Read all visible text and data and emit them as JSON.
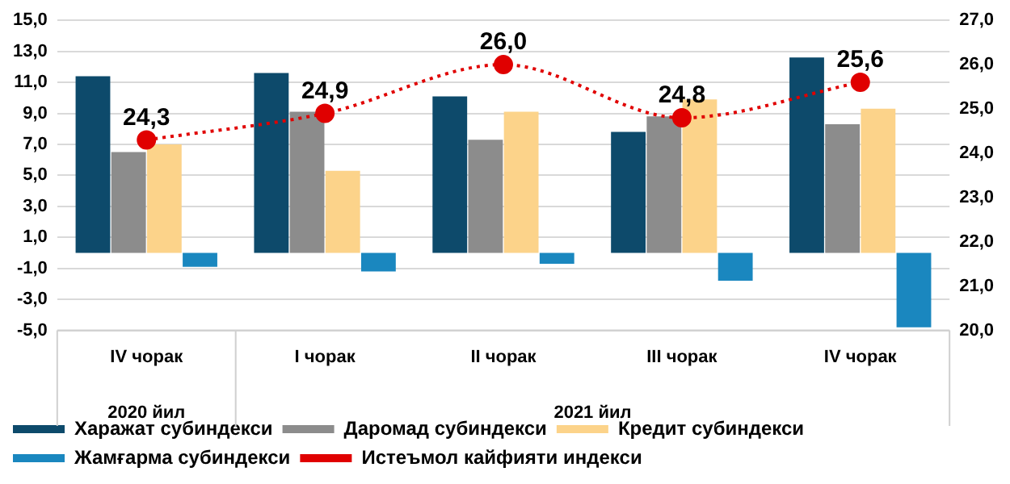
{
  "chart_data": {
    "type": "bar",
    "categories": [
      "IV чорак",
      "I чорак",
      "II чорак",
      "III чорак",
      "IV чорак"
    ],
    "annotations": [
      "2020 йил",
      "2021 йил"
    ],
    "series": [
      {
        "name": "Харажат субиндекси",
        "color": "#0d4a6b",
        "values": [
          11.4,
          11.6,
          10.1,
          7.8,
          12.6
        ]
      },
      {
        "name": "Даромад субиндекси",
        "color": "#8c8c8c",
        "values": [
          6.5,
          9.1,
          7.3,
          8.8,
          8.3
        ]
      },
      {
        "name": "Кредит субиндекси",
        "color": "#fcd38a",
        "values": [
          7.0,
          5.3,
          9.1,
          9.9,
          9.3
        ]
      },
      {
        "name": "Жамғарма субиндекси",
        "color": "#1a87bf",
        "values": [
          -0.9,
          -1.2,
          -0.7,
          -1.8,
          -4.8
        ]
      },
      {
        "name": "Истеъмол кайфияти индекси",
        "type": "line",
        "axis": "y2",
        "color": "#e00000",
        "line_style": "dotted",
        "marker": "circle",
        "values": [
          24.3,
          24.9,
          26.0,
          24.8,
          25.6
        ],
        "value_labels": [
          "24,3",
          "24,9",
          "26,0",
          "24,8",
          "25,6"
        ]
      }
    ],
    "ylim": [
      -5,
      15
    ],
    "yticks": [
      {
        "value": -5,
        "label": "-5,0"
      },
      {
        "value": -3,
        "label": "-3,0"
      },
      {
        "value": -1,
        "label": "-1,0"
      },
      {
        "value": 1,
        "label": "1,0"
      },
      {
        "value": 3,
        "label": "3,0"
      },
      {
        "value": 5,
        "label": "5,0"
      },
      {
        "value": 7,
        "label": "7,0"
      },
      {
        "value": 9,
        "label": "9,0"
      },
      {
        "value": 11,
        "label": "11,0"
      },
      {
        "value": 13,
        "label": "13,0"
      },
      {
        "value": 15,
        "label": "15,0"
      }
    ],
    "y2lim": [
      20,
      27
    ],
    "y2ticks": [
      {
        "value": 20,
        "label": "20,0"
      },
      {
        "value": 21,
        "label": "21,0"
      },
      {
        "value": 22,
        "label": "22,0"
      },
      {
        "value": 23,
        "label": "23,0"
      },
      {
        "value": 24,
        "label": "24,0"
      },
      {
        "value": 25,
        "label": "25,0"
      },
      {
        "value": 26,
        "label": "26,0"
      },
      {
        "value": 27,
        "label": "27,0"
      }
    ],
    "grid": "y",
    "legend": "bottom"
  }
}
